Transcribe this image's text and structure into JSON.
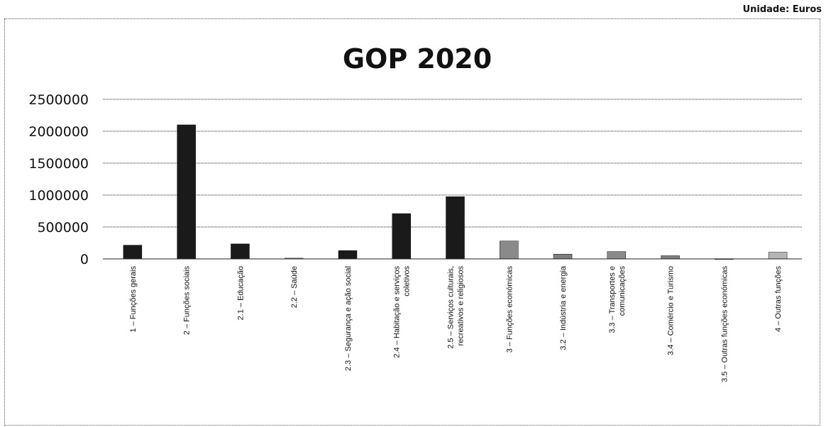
{
  "unit_label": "Unidade: Euros",
  "chart_data": {
    "type": "bar",
    "title": "GOP 2020",
    "xlabel": "",
    "ylabel": "",
    "ylim": [
      0,
      2500000
    ],
    "yticks": [
      "0",
      "500000",
      "1000000",
      "1500000",
      "2000000",
      "2500000"
    ],
    "grid": true,
    "legend": "none",
    "categories": [
      [
        "1 – Funções gerais"
      ],
      [
        "2 – Funções sociais"
      ],
      [
        "2.1 – Educação"
      ],
      [
        "2.2 – Saúde"
      ],
      [
        "2.3 – Segurança e ação social"
      ],
      [
        "2.4 – Habitação e serviços",
        "coletivos"
      ],
      [
        "2.5 – Serviços culturais,",
        "recreativos e religiosos"
      ],
      [
        "3 – Funções económicas"
      ],
      [
        "3.2 – Indústria e energia"
      ],
      [
        "3.3 – Transportes e",
        "comunicações"
      ],
      [
        "3.4 – Comércio e Turismo"
      ],
      [
        "3.5 – Outras funções económicas"
      ],
      [
        "4 – Outras funções"
      ]
    ],
    "values": [
      215000,
      2100000,
      235000,
      12000,
      130000,
      710000,
      975000,
      280000,
      75000,
      115000,
      50000,
      3000,
      105000
    ],
    "bar_colors": [
      "#1a1a1a",
      "#1a1a1a",
      "#1a1a1a",
      "#9a9a9a",
      "#1a1a1a",
      "#1a1a1a",
      "#1a1a1a",
      "#8a8a8a",
      "#7f7f7f",
      "#8a8a8a",
      "#7f7f7f",
      "#7f7f7f",
      "#b5b5b5"
    ]
  }
}
